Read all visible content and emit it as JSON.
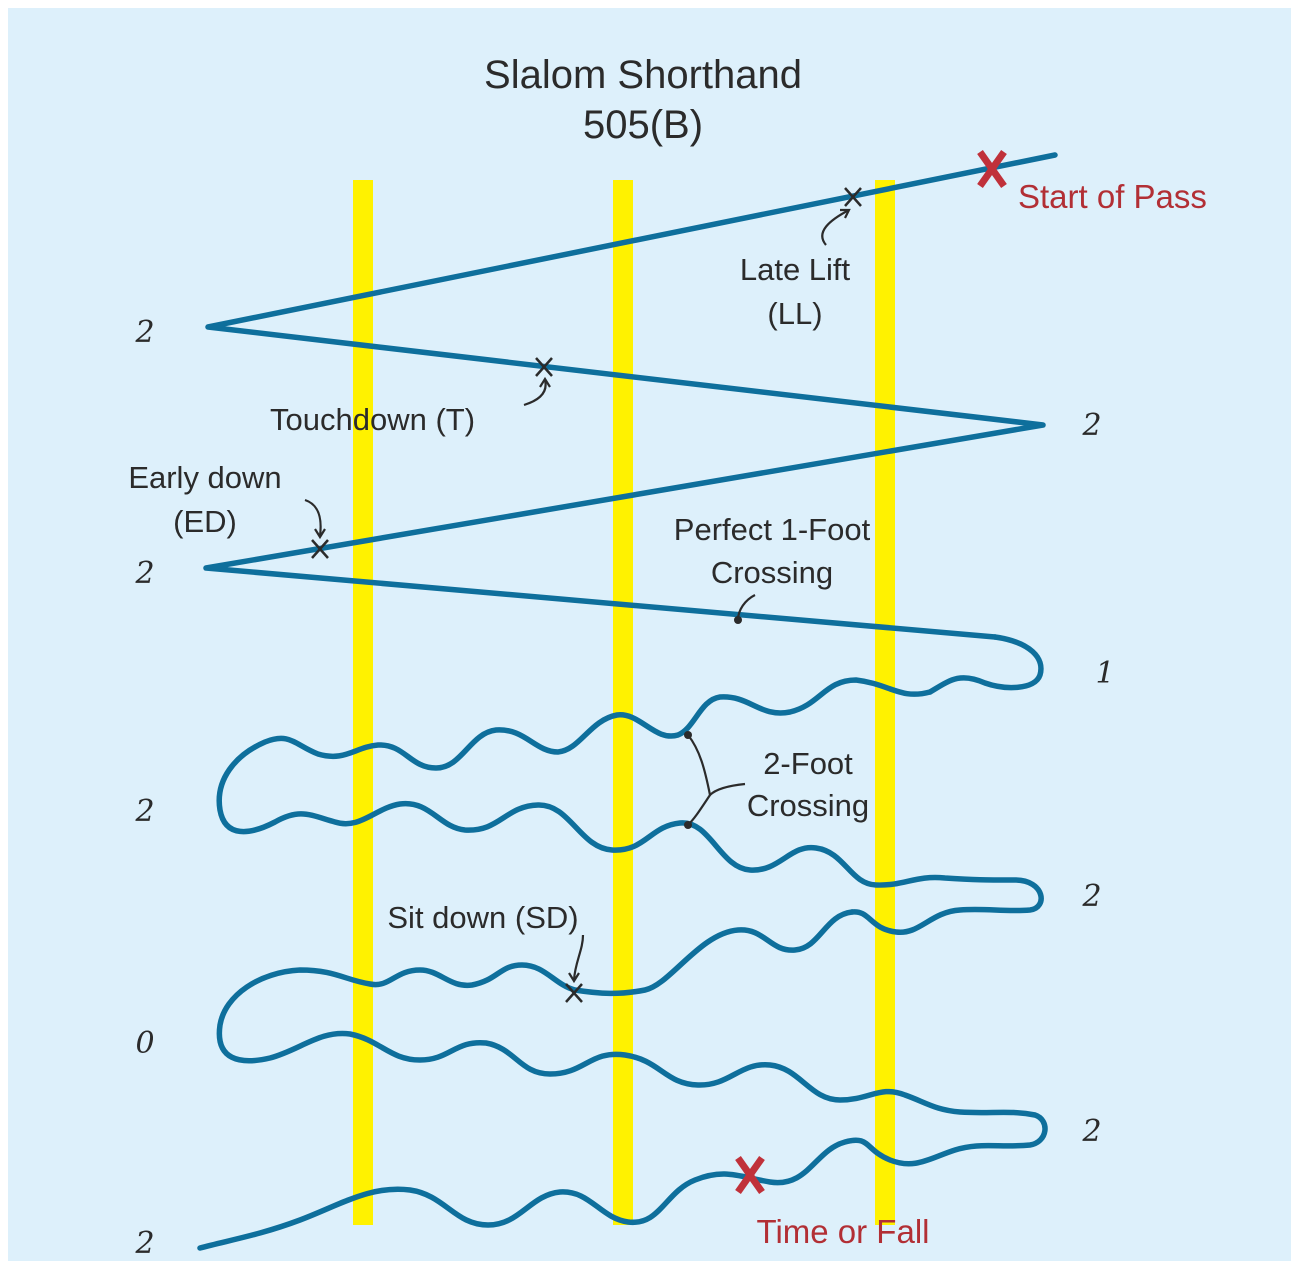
{
  "title": {
    "line1": "Slalom Shorthand",
    "line2": "505(B)"
  },
  "labels": {
    "start_of_pass": "Start of Pass",
    "late_lift_1": "Late Lift",
    "late_lift_2": "(LL)",
    "touchdown": "Touchdown (T)",
    "early_down_1": "Early down",
    "early_down_2": "(ED)",
    "perfect_1": "Perfect 1-Foot",
    "perfect_2": "Crossing",
    "two_foot_1": "2-Foot",
    "two_foot_2": "Crossing",
    "sit_down": "Sit down (SD)",
    "time_or_fall": "Time or Fall"
  },
  "scores": {
    "s1": "2",
    "s2": "2",
    "s3": "2",
    "s4": "1",
    "s5": "2",
    "s6": "2",
    "s7": "0",
    "s8": "2",
    "s9": "2"
  },
  "colors": {
    "background": "#ddf0fb",
    "pole": "#fff200",
    "path": "#0e6f9c",
    "red": "#b22f35",
    "text": "#2b2b2b"
  }
}
